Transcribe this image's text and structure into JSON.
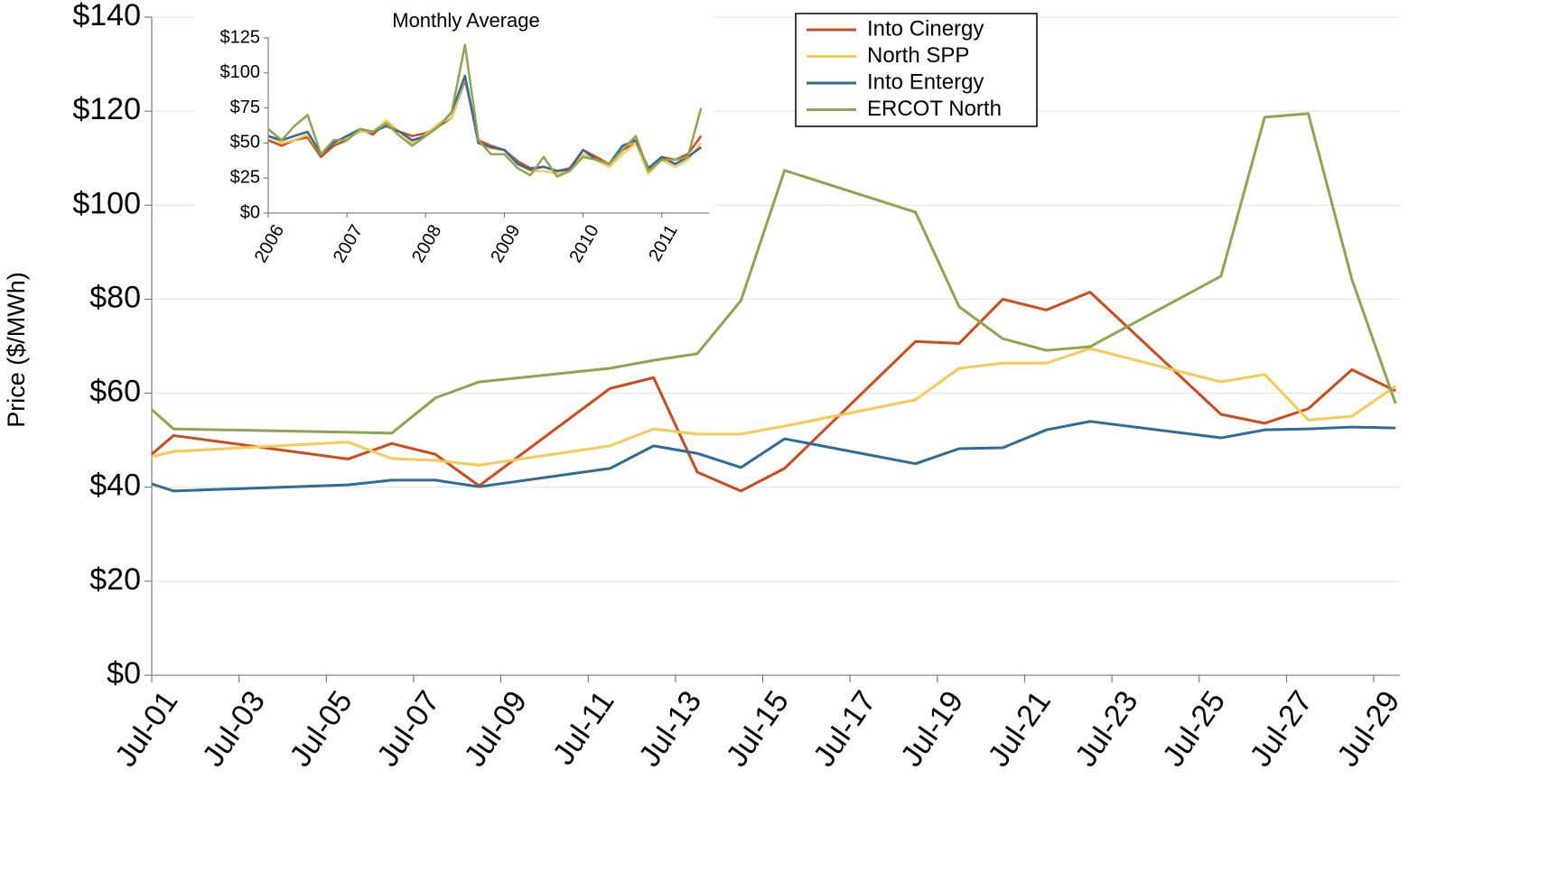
{
  "chart_data": [
    {
      "type": "line",
      "ylabel": "Price ($/MWh)",
      "grid": true,
      "x": [
        1,
        1.5,
        5.5,
        6.5,
        7.5,
        8.5,
        11.5,
        12.5,
        13.5,
        14.5,
        15.5,
        18.5,
        19.5,
        20.5,
        21.5,
        22.5,
        25.5,
        26.5,
        27.5,
        28.5,
        29.5
      ],
      "xlim": [
        1,
        29.6
      ],
      "xticks": [
        {
          "value": 1,
          "label": "Jul-01"
        },
        {
          "value": 3,
          "label": "Jul-03"
        },
        {
          "value": 5,
          "label": "Jul-05"
        },
        {
          "value": 7,
          "label": "Jul-07"
        },
        {
          "value": 9,
          "label": "Jul-09"
        },
        {
          "value": 11,
          "label": "Jul-11"
        },
        {
          "value": 13,
          "label": "Jul-13"
        },
        {
          "value": 15,
          "label": "Jul-15"
        },
        {
          "value": 17,
          "label": "Jul-17"
        },
        {
          "value": 19,
          "label": "Jul-19"
        },
        {
          "value": 21,
          "label": "Jul-21"
        },
        {
          "value": 23,
          "label": "Jul-23"
        },
        {
          "value": 25,
          "label": "Jul-25"
        },
        {
          "value": 27,
          "label": "Jul-27"
        },
        {
          "value": 29,
          "label": "Jul-29"
        }
      ],
      "ylim": [
        0,
        140
      ],
      "yticks": [
        {
          "value": 0,
          "label": "$0"
        },
        {
          "value": 20,
          "label": "$20"
        },
        {
          "value": 40,
          "label": "$40"
        },
        {
          "value": 60,
          "label": "$60"
        },
        {
          "value": 80,
          "label": "$80"
        },
        {
          "value": 100,
          "label": "$100"
        },
        {
          "value": 120,
          "label": "$120"
        },
        {
          "value": 140,
          "label": "$140"
        }
      ],
      "series": [
        {
          "name": "Into Cinergy",
          "color": "#d24a1a",
          "values": [
            47,
            51,
            46,
            49.3,
            47,
            40.3,
            61,
            63.3,
            43.2,
            39.2,
            44,
            71,
            70.6,
            80,
            77.7,
            81.5,
            55.5,
            53.6,
            56.7,
            65,
            60.5
          ]
        },
        {
          "name": "North SPP",
          "color": "#f9c855",
          "values": [
            46.5,
            47.6,
            49.6,
            46.1,
            45.7,
            44.7,
            48.8,
            52.4,
            51.3,
            51.3,
            53,
            58.6,
            65.3,
            66.4,
            66.4,
            69.5,
            62.4,
            64,
            54.3,
            55.1,
            61.5
          ]
        },
        {
          "name": "Into Entergy",
          "color": "#2e6a9a",
          "values": [
            40.7,
            39.2,
            40.5,
            41.5,
            41.5,
            40.1,
            44,
            48.8,
            47.2,
            44.2,
            50.3,
            45,
            48.2,
            48.4,
            52.2,
            54,
            50.5,
            52.2,
            52.4,
            52.8,
            52.6
          ]
        },
        {
          "name": "ERCOT North",
          "color": "#8ea44e",
          "values": [
            56.5,
            52.4,
            51.7,
            51.5,
            59,
            62.4,
            65.3,
            67,
            68.4,
            79.7,
            107.4,
            98.5,
            78.4,
            71.6,
            69.1,
            69.9,
            84.9,
            118.7,
            119.5,
            84.2,
            57.8
          ]
        }
      ]
    },
    {
      "type": "line",
      "title": "Monthly Average",
      "grid": false,
      "x": [
        2006,
        2006.17,
        2006.33,
        2006.5,
        2006.67,
        2006.83,
        2007,
        2007.17,
        2007.33,
        2007.5,
        2007.67,
        2007.83,
        2008,
        2008.17,
        2008.33,
        2008.5,
        2008.67,
        2008.83,
        2009,
        2009.17,
        2009.33,
        2009.5,
        2009.67,
        2009.83,
        2010,
        2010.17,
        2010.33,
        2010.5,
        2010.67,
        2010.83,
        2011,
        2011.17,
        2011.33,
        2011.5
      ],
      "xlim": [
        2006,
        2011.6
      ],
      "xticks": [
        2006,
        2007,
        2008,
        2009,
        2010,
        2011
      ],
      "ylim": [
        0,
        125
      ],
      "yticks": [
        {
          "value": 0,
          "label": "$0"
        },
        {
          "value": 25,
          "label": "$25"
        },
        {
          "value": 50,
          "label": "$50"
        },
        {
          "value": 75,
          "label": "$75"
        },
        {
          "value": 100,
          "label": "$100"
        },
        {
          "value": 125,
          "label": "$125"
        }
      ],
      "series": [
        {
          "color": "#d24a1a",
          "values": [
            52,
            48,
            52,
            54,
            40,
            48,
            52,
            60,
            56,
            65,
            58,
            55,
            57,
            62,
            68,
            95,
            52,
            48,
            45,
            37,
            32,
            33,
            30,
            32,
            45,
            40,
            35,
            45,
            50,
            32,
            40,
            38,
            42,
            55
          ]
        },
        {
          "color": "#f9c855",
          "values": [
            55,
            50,
            52,
            56,
            42,
            50,
            54,
            58,
            58,
            66,
            58,
            50,
            56,
            64,
            68,
            97,
            50,
            46,
            45,
            35,
            30,
            30,
            28,
            30,
            42,
            38,
            33,
            42,
            50,
            28,
            38,
            33,
            38,
            50
          ]
        },
        {
          "color": "#2e6a9a",
          "values": [
            55,
            52,
            55,
            58,
            42,
            50,
            55,
            60,
            58,
            62,
            58,
            52,
            55,
            62,
            72,
            98,
            50,
            47,
            45,
            35,
            31,
            33,
            30,
            31,
            45,
            38,
            35,
            48,
            52,
            32,
            40,
            35,
            40,
            47
          ]
        },
        {
          "color": "#8ea44e",
          "values": [
            60,
            52,
            62,
            70,
            42,
            52,
            52,
            60,
            58,
            64,
            55,
            48,
            55,
            62,
            72,
            120,
            52,
            42,
            42,
            32,
            27,
            40,
            26,
            30,
            40,
            38,
            35,
            45,
            55,
            30,
            38,
            38,
            40,
            75
          ]
        }
      ]
    }
  ]
}
